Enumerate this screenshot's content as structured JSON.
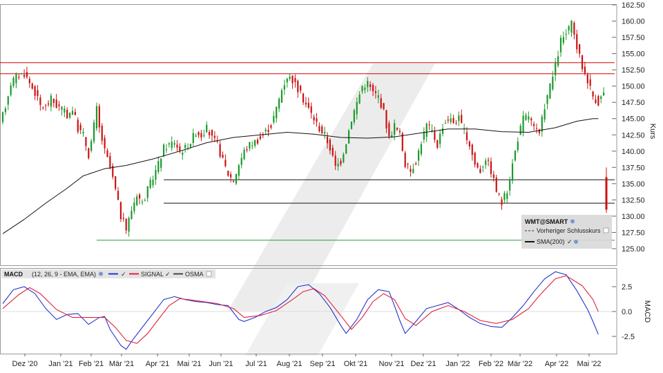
{
  "chart_data": [
    {
      "type": "candlestick",
      "symbol_label": "WMT@SMART",
      "ylabel": "Kurs",
      "ylim": [
        122.5,
        162.5
      ],
      "y_ticks": [
        125.0,
        127.5,
        130.0,
        132.5,
        135.0,
        137.5,
        140.0,
        142.5,
        145.0,
        147.5,
        150.0,
        152.5,
        155.0,
        157.5,
        160.0,
        162.5
      ],
      "y_tick_labels": [
        "125.00",
        "127.50",
        "130.00",
        "132.50",
        "135.00",
        "137.50",
        "140.00",
        "142.50",
        "145.00",
        "147.50",
        "150.00",
        "152.50",
        "155.00",
        "157.50",
        "160.00",
        "162.50"
      ],
      "x_tick_labels": [
        "Dez '20",
        "Jan '21",
        "Feb '21",
        "Mär '21",
        "Apr '21",
        "Mai '21",
        "Jun '21",
        "Jul '21",
        "Aug '21",
        "Sep '21",
        "Okt '21",
        "Nov '21",
        "Dez '21",
        "Jan '22",
        "Feb '22",
        "Mär '22",
        "Apr '22",
        "Mai '22"
      ],
      "legend": {
        "title": "WMT@SMART",
        "entries": [
          {
            "label": "Vorheriger Schlusskurs",
            "style": "dashed",
            "color": "#333333"
          },
          {
            "label": "SMA(200)",
            "style": "solid",
            "color": "#111111"
          }
        ]
      },
      "price_path": [
        [
          0,
          144
        ],
        [
          2,
          147
        ],
        [
          4,
          150.5
        ],
        [
          6,
          151.5
        ],
        [
          9,
          152
        ],
        [
          11,
          150.5
        ],
        [
          13,
          149
        ],
        [
          15,
          147
        ],
        [
          17,
          146.8
        ],
        [
          19,
          148
        ],
        [
          21,
          147
        ],
        [
          23,
          146.5
        ],
        [
          25,
          145.5
        ],
        [
          27,
          146.5
        ],
        [
          29,
          143.5
        ],
        [
          31,
          142.5
        ],
        [
          33,
          139.5
        ],
        [
          34,
          141.5
        ],
        [
          36,
          146.5
        ],
        [
          37,
          143.5
        ],
        [
          39,
          140
        ],
        [
          41,
          137.5
        ],
        [
          43,
          134
        ],
        [
          45,
          130
        ],
        [
          47,
          128
        ],
        [
          49,
          131
        ],
        [
          51,
          133.5
        ],
        [
          53,
          132
        ],
        [
          55,
          134
        ],
        [
          57,
          136
        ],
        [
          59,
          138
        ],
        [
          61,
          140.5
        ],
        [
          63,
          141
        ],
        [
          65,
          141.5
        ],
        [
          67,
          140
        ],
        [
          69,
          140.5
        ],
        [
          71,
          141.5
        ],
        [
          73,
          143
        ],
        [
          75,
          142.5
        ],
        [
          77,
          143.5
        ],
        [
          79,
          142
        ],
        [
          81,
          141
        ],
        [
          83,
          138.5
        ],
        [
          85,
          136.5
        ],
        [
          87,
          135.5
        ],
        [
          89,
          138
        ],
        [
          91,
          140
        ],
        [
          93,
          141
        ],
        [
          95,
          141.5
        ],
        [
          97,
          142
        ],
        [
          99,
          143
        ],
        [
          101,
          144
        ],
        [
          103,
          146.5
        ],
        [
          105,
          149.5
        ],
        [
          107,
          151.5
        ],
        [
          109,
          151
        ],
        [
          111,
          149.5
        ],
        [
          113,
          148
        ],
        [
          115,
          146.5
        ],
        [
          117,
          145
        ],
        [
          119,
          143.5
        ],
        [
          121,
          142.5
        ],
        [
          123,
          140.5
        ],
        [
          125,
          137.5
        ],
        [
          127,
          138.5
        ],
        [
          129,
          141.5
        ],
        [
          131,
          145
        ],
        [
          133,
          147.5
        ],
        [
          135,
          150
        ],
        [
          137,
          150.5
        ],
        [
          139,
          149
        ],
        [
          141,
          148.5
        ],
        [
          143,
          146
        ],
        [
          145,
          142
        ],
        [
          147,
          144
        ],
        [
          149,
          142.5
        ],
        [
          151,
          138
        ],
        [
          153,
          137
        ],
        [
          155,
          138.5
        ],
        [
          157,
          141.5
        ],
        [
          159,
          144
        ],
        [
          161,
          143
        ],
        [
          163,
          141
        ],
        [
          165,
          144
        ],
        [
          167,
          145
        ],
        [
          169,
          144.5
        ],
        [
          171,
          145
        ],
        [
          173,
          143
        ],
        [
          175,
          141
        ],
        [
          177,
          138
        ],
        [
          179,
          137
        ],
        [
          181,
          139
        ],
        [
          183,
          137
        ],
        [
          185,
          134
        ],
        [
          187,
          132
        ],
        [
          189,
          134
        ],
        [
          191,
          138
        ],
        [
          193,
          142
        ],
        [
          195,
          145
        ],
        [
          197,
          145.5
        ],
        [
          199,
          143.5
        ],
        [
          201,
          142.5
        ],
        [
          203,
          147
        ],
        [
          205,
          150
        ],
        [
          207,
          153
        ],
        [
          209,
          157
        ],
        [
          211,
          158
        ],
        [
          213,
          159.5
        ],
        [
          215,
          156
        ],
        [
          217,
          153
        ],
        [
          219,
          151
        ],
        [
          221,
          148.5
        ],
        [
          223,
          147.5
        ],
        [
          225,
          149
        ]
      ],
      "price_total_days": 225,
      "last_candle": {
        "open": 136,
        "high": 137.5,
        "low": 130.5,
        "close": 131.0
      },
      "sma200_path": [
        [
          0,
          127.3
        ],
        [
          8,
          129.5
        ],
        [
          16,
          132
        ],
        [
          24,
          134.3
        ],
        [
          30,
          136.2
        ],
        [
          38,
          137.3
        ],
        [
          46,
          137.8
        ],
        [
          56,
          138.8
        ],
        [
          66,
          140
        ],
        [
          76,
          141.3
        ],
        [
          86,
          142.1
        ],
        [
          96,
          142.5
        ],
        [
          106,
          142.9
        ],
        [
          116,
          142.6
        ],
        [
          126,
          142.1
        ],
        [
          136,
          142.0
        ],
        [
          146,
          142.2
        ],
        [
          156,
          142.8
        ],
        [
          166,
          143.4
        ],
        [
          176,
          143.4
        ],
        [
          186,
          143.0
        ],
        [
          196,
          142.9
        ],
        [
          206,
          143.6
        ],
        [
          214,
          144.6
        ],
        [
          220,
          145.0
        ],
        [
          222,
          145.0
        ]
      ],
      "support_lines": [
        {
          "name": "red-resistance-upper",
          "value": 153.6,
          "color": "#d40000",
          "x_from_day": 0,
          "x_to_day": 225
        },
        {
          "name": "red-resistance-lower",
          "value": 151.9,
          "color": "#d40000",
          "x_from_day": 0,
          "x_to_day": 225
        },
        {
          "name": "black-support-upper",
          "value": 135.6,
          "color": "#111111",
          "x_from_day": 60,
          "x_to_day": 225
        },
        {
          "name": "black-support-lower",
          "value": 132.0,
          "color": "#111111",
          "x_from_day": 60,
          "x_to_day": 225
        },
        {
          "name": "green-support",
          "value": 126.3,
          "color": "#2a9a3a",
          "x_from_day": 35,
          "x_to_day": 225
        }
      ],
      "colors": {
        "up": "#1a9a2a",
        "down": "#cc1111",
        "sma": "#111111"
      }
    },
    {
      "type": "line",
      "title": "MACD",
      "params_label": "(12, 26, 9 - EMA, EMA)",
      "ylabel": "MACD",
      "ylim": [
        -3.5,
        4.0
      ],
      "y_ticks": [
        -2.5,
        0.0,
        2.5
      ],
      "y_tick_labels": [
        "-2.5",
        "0.0",
        "2.5"
      ],
      "legend": {
        "entries": [
          {
            "label": "SIGNAL",
            "color": "#e0203a"
          },
          {
            "label": "OSMA",
            "color": "#444444"
          }
        ]
      },
      "series": [
        {
          "name": "MACD",
          "color": "#2233cc",
          "values": [
            [
              0,
              0.8
            ],
            [
              4,
              2.2
            ],
            [
              8,
              2.5
            ],
            [
              12,
              1.8
            ],
            [
              16,
              0.3
            ],
            [
              20,
              -0.8
            ],
            [
              24,
              -0.3
            ],
            [
              28,
              -0.2
            ],
            [
              32,
              -1.3
            ],
            [
              36,
              -0.6
            ],
            [
              38,
              -0.5
            ],
            [
              40,
              -1.8
            ],
            [
              44,
              -3.4
            ],
            [
              46,
              -3.8
            ],
            [
              48,
              -3.0
            ],
            [
              52,
              -1.6
            ],
            [
              56,
              -0.2
            ],
            [
              60,
              1.2
            ],
            [
              64,
              1.5
            ],
            [
              68,
              1.2
            ],
            [
              72,
              1.0
            ],
            [
              76,
              0.9
            ],
            [
              80,
              0.7
            ],
            [
              84,
              0.6
            ],
            [
              88,
              -0.8
            ],
            [
              90,
              -1.0
            ],
            [
              94,
              -0.6
            ],
            [
              98,
              0.0
            ],
            [
              102,
              0.4
            ],
            [
              106,
              1.2
            ],
            [
              110,
              2.5
            ],
            [
              114,
              2.7
            ],
            [
              118,
              1.8
            ],
            [
              122,
              0.4
            ],
            [
              126,
              -1.4
            ],
            [
              128,
              -2.2
            ],
            [
              132,
              -0.8
            ],
            [
              136,
              1.2
            ],
            [
              140,
              2.2
            ],
            [
              144,
              2.0
            ],
            [
              146,
              0.6
            ],
            [
              148,
              -0.9
            ],
            [
              150,
              -2.2
            ],
            [
              154,
              -1.0
            ],
            [
              158,
              0.3
            ],
            [
              162,
              0.6
            ],
            [
              166,
              0.9
            ],
            [
              170,
              0.2
            ],
            [
              174,
              -0.6
            ],
            [
              178,
              -1.2
            ],
            [
              182,
              -1.5
            ],
            [
              186,
              -1.6
            ],
            [
              190,
              -0.6
            ],
            [
              194,
              0.6
            ],
            [
              198,
              2.0
            ],
            [
              202,
              3.3
            ],
            [
              206,
              4.0
            ],
            [
              210,
              3.7
            ],
            [
              214,
              2.1
            ],
            [
              218,
              0.2
            ],
            [
              220,
              -1.0
            ],
            [
              222,
              -2.3
            ]
          ]
        },
        {
          "name": "SIGNAL",
          "color": "#e0203a",
          "values": [
            [
              0,
              0.3
            ],
            [
              6,
              1.7
            ],
            [
              10,
              2.4
            ],
            [
              14,
              1.8
            ],
            [
              20,
              0.2
            ],
            [
              26,
              -0.6
            ],
            [
              32,
              -0.6
            ],
            [
              38,
              -0.6
            ],
            [
              42,
              -1.6
            ],
            [
              46,
              -2.9
            ],
            [
              50,
              -3.2
            ],
            [
              54,
              -2.2
            ],
            [
              58,
              -0.8
            ],
            [
              62,
              0.6
            ],
            [
              66,
              1.3
            ],
            [
              72,
              1.1
            ],
            [
              80,
              0.8
            ],
            [
              86,
              0.3
            ],
            [
              90,
              -0.6
            ],
            [
              96,
              -0.4
            ],
            [
              102,
              0.1
            ],
            [
              108,
              1.2
            ],
            [
              112,
              2.0
            ],
            [
              116,
              2.3
            ],
            [
              120,
              1.6
            ],
            [
              126,
              -0.4
            ],
            [
              130,
              -1.8
            ],
            [
              134,
              -0.6
            ],
            [
              138,
              1.0
            ],
            [
              142,
              1.8
            ],
            [
              146,
              1.2
            ],
            [
              150,
              -0.7
            ],
            [
              154,
              -1.4
            ],
            [
              160,
              0.0
            ],
            [
              166,
              0.6
            ],
            [
              172,
              0.0
            ],
            [
              178,
              -0.9
            ],
            [
              184,
              -1.2
            ],
            [
              190,
              -0.8
            ],
            [
              196,
              0.3
            ],
            [
              200,
              1.6
            ],
            [
              206,
              3.3
            ],
            [
              210,
              3.6
            ],
            [
              216,
              2.6
            ],
            [
              220,
              1.2
            ],
            [
              222,
              0.0
            ]
          ]
        }
      ]
    }
  ]
}
